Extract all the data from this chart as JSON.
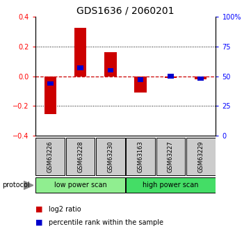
{
  "title": "GDS1636 / 2060201",
  "samples": [
    "GSM63226",
    "GSM63228",
    "GSM63230",
    "GSM63163",
    "GSM63227",
    "GSM63229"
  ],
  "log2_ratio": [
    -0.255,
    0.325,
    0.16,
    -0.11,
    -0.01,
    -0.02
  ],
  "percentile_rank": [
    44,
    57,
    55,
    47,
    50,
    48
  ],
  "protocol_groups": [
    {
      "label": "low power scan",
      "samples": [
        0,
        1,
        2
      ],
      "color": "#90EE90"
    },
    {
      "label": "high power scan",
      "samples": [
        3,
        4,
        5
      ],
      "color": "#44DD66"
    }
  ],
  "ylim_left": [
    -0.4,
    0.4
  ],
  "ylim_right": [
    0,
    100
  ],
  "yticks_left": [
    -0.4,
    -0.2,
    0.0,
    0.2,
    0.4
  ],
  "yticks_right": [
    0,
    25,
    50,
    75,
    100
  ],
  "bar_color_red": "#CC0000",
  "bar_color_blue": "#0000CC",
  "dashed_line_color": "#CC0000",
  "grid_color": "#000000",
  "background_color": "#ffffff",
  "bar_width": 0.4,
  "percentile_bar_width": 0.2,
  "percentile_bar_height": 0.03,
  "sample_box_color": "#CCCCCC",
  "title_fontsize": 10,
  "tick_fontsize": 7,
  "sample_fontsize": 6,
  "proto_fontsize": 7,
  "legend_fontsize": 7
}
